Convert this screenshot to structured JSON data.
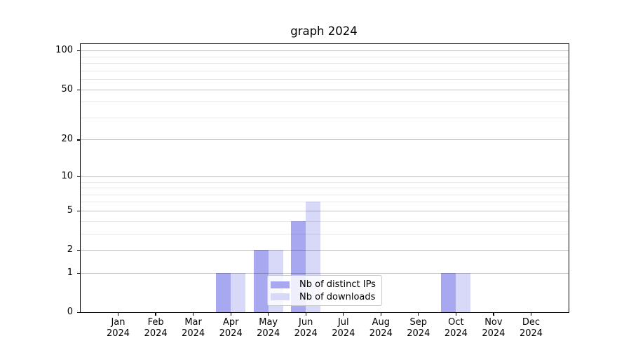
{
  "chart_data": {
    "type": "bar",
    "title": "graph 2024",
    "categories": [
      "Jan",
      "Feb",
      "Mar",
      "Apr",
      "May",
      "Jun",
      "Jul",
      "Aug",
      "Sep",
      "Oct",
      "Nov",
      "Dec"
    ],
    "x_year_label": "2024",
    "series": [
      {
        "name": "Nb of distinct IPs",
        "color": "#a8a8f0",
        "values": [
          0,
          0,
          0,
          1,
          2,
          4,
          0,
          0,
          0,
          1,
          0,
          0
        ]
      },
      {
        "name": "Nb of downloads",
        "color": "#d8d8f8",
        "values": [
          0,
          0,
          0,
          1,
          2,
          6,
          0,
          0,
          0,
          1,
          0,
          0
        ]
      }
    ],
    "xlabel": "",
    "ylabel": "",
    "y_scale": "log1p",
    "y_max": 112,
    "y_major_ticks": [
      0,
      1,
      2,
      5,
      10,
      20,
      50,
      100
    ],
    "y_minor_gridlines": [
      3,
      4,
      6,
      7,
      8,
      9,
      30,
      40,
      60,
      70,
      80,
      90
    ],
    "grid": true,
    "legend_position": "lower center"
  }
}
